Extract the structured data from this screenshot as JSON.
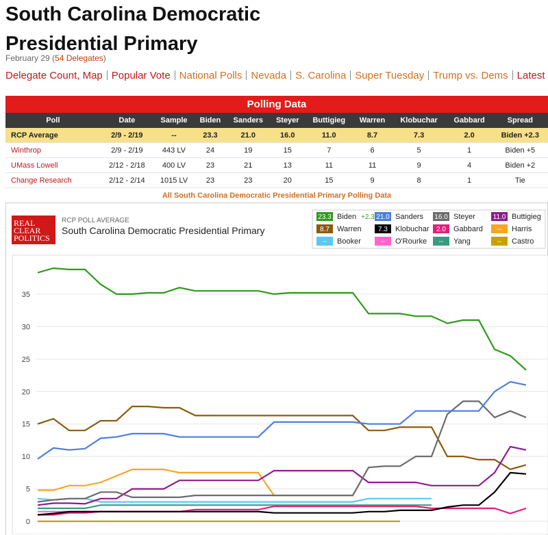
{
  "header": {
    "title": [
      "South Carolina Democratic",
      "Presidential Primary"
    ],
    "date": {
      "prefix": "February 29 (",
      "link": "54 Delegates",
      "suffix": ")"
    },
    "nav": [
      "Delegate Count, Map",
      "Popular Vote",
      "National Polls",
      "Nevada",
      "S. Carolina",
      "Super Tuesday",
      "Trump vs. Dems",
      "Latest Polls"
    ]
  },
  "table": {
    "title": "Polling Data",
    "columns": [
      "Poll",
      "Date",
      "Sample",
      "Biden",
      "Sanders",
      "Steyer",
      "Buttigieg",
      "Warren",
      "Klobuchar",
      "Gabbard",
      "Spread"
    ],
    "rows": [
      [
        "RCP Average",
        "2/9 - 2/19",
        "--",
        "23.3",
        "21.0",
        "16.0",
        "11.0",
        "8.7",
        "7.3",
        "2.0",
        "Biden +2.3"
      ],
      [
        "Winthrop",
        "2/9 - 2/19",
        "443 LV",
        "24",
        "19",
        "15",
        "7",
        "6",
        "5",
        "1",
        "Biden +5"
      ],
      [
        "UMass Lowell",
        "2/12 - 2/18",
        "400 LV",
        "23",
        "21",
        "13",
        "11",
        "11",
        "9",
        "4",
        "Biden +2"
      ],
      [
        "Change Research",
        "2/12 - 2/14",
        "1015 LV",
        "23",
        "23",
        "20",
        "15",
        "9",
        "8",
        "1",
        "Tie"
      ]
    ],
    "footer": "All South Carolina Democratic Presidential Primary Polling Data"
  },
  "chart_data": {
    "type": "line",
    "logo": [
      "REAL",
      "CLEAR",
      "POLITICS"
    ],
    "subtitle": "RCP POLL AVERAGE",
    "title": "South Carolina Democratic Presidential Primary",
    "categories": [
      null,
      null,
      null,
      null,
      null,
      null,
      null,
      null,
      null,
      null,
      null,
      null,
      null,
      null,
      null,
      null,
      null,
      null,
      null,
      null,
      null,
      null,
      null,
      null,
      null,
      null,
      null,
      null,
      null,
      null,
      null,
      null
    ],
    "ylim": [
      -2,
      41
    ],
    "yticks": [
      0,
      5,
      10,
      15,
      20,
      25,
      30,
      35
    ],
    "grid": true,
    "series": [
      {
        "name": "Biden",
        "color": "#2f9a1c",
        "latest": "23.3",
        "spread": "+2.3",
        "values": [
          38.3,
          39,
          38.8,
          38.8,
          36.5,
          35,
          35,
          35.2,
          35.2,
          36,
          35.5,
          35.5,
          35.5,
          35.5,
          35.5,
          35,
          35.2,
          35.2,
          35.2,
          35.2,
          35.2,
          32,
          32,
          32,
          31.6,
          31.6,
          30.5,
          31,
          31,
          26.5,
          25.5,
          23.3
        ]
      },
      {
        "name": "Sanders",
        "color": "#4b7fdc",
        "latest": "21.0",
        "values": [
          9.6,
          11.3,
          11,
          11.2,
          12.8,
          13,
          13.5,
          13.5,
          13.5,
          13,
          13,
          13,
          13,
          13,
          13,
          15.3,
          15.3,
          15.3,
          15.3,
          15.3,
          15.3,
          15,
          15,
          15,
          17,
          17,
          17,
          17,
          17,
          20,
          21.5,
          21
        ]
      },
      {
        "name": "Steyer",
        "color": "#6b6b6b",
        "latest": "16.0",
        "values": [
          3,
          3.3,
          3.5,
          3.5,
          4.5,
          4.5,
          3.7,
          3.7,
          3.7,
          3.7,
          4,
          4,
          4,
          4,
          4,
          4,
          4,
          4,
          4,
          4,
          4,
          8.3,
          8.5,
          8.5,
          10,
          10,
          16.5,
          18.5,
          18.5,
          16,
          17,
          16
        ]
      },
      {
        "name": "Buttigieg",
        "color": "#8e1a8e",
        "latest": "11.0",
        "values": [
          2.5,
          2.8,
          2.8,
          2.7,
          3.5,
          3.5,
          5,
          5,
          5,
          6.3,
          6.3,
          6.3,
          6.3,
          6.3,
          6.3,
          7.8,
          7.8,
          7.8,
          7.8,
          7.8,
          7.8,
          6,
          6,
          6,
          6,
          5.5,
          5.5,
          5.5,
          5.5,
          7.5,
          11.5,
          11
        ]
      },
      {
        "name": "Warren",
        "color": "#8b5a10",
        "latest": "8.7",
        "values": [
          15,
          15.8,
          14,
          14,
          15.5,
          15.5,
          17.7,
          17.7,
          17.5,
          17.5,
          16.3,
          16.3,
          16.3,
          16.3,
          16.3,
          16.3,
          16.3,
          16.3,
          16.3,
          16.3,
          16.3,
          14,
          14,
          14.5,
          14.5,
          14.5,
          10,
          10,
          9.5,
          9.5,
          8,
          8.7
        ]
      },
      {
        "name": "Klobuchar",
        "color": "#000000",
        "latest": "7.3",
        "values": [
          1,
          1.2,
          1.5,
          1.5,
          1.5,
          1.5,
          1.5,
          1.5,
          1.5,
          1.5,
          1.5,
          1.5,
          1.5,
          1.5,
          1.5,
          1.3,
          1.3,
          1.3,
          1.3,
          1.3,
          1.3,
          1.5,
          1.5,
          1.7,
          1.7,
          1.7,
          2.2,
          2.5,
          2.5,
          4.5,
          7.5,
          7.3
        ]
      },
      {
        "name": "Gabbard",
        "color": "#e0207a",
        "latest": "2.0",
        "values": [
          1,
          1,
          1.3,
          1.3,
          1.5,
          1.5,
          1.5,
          1.5,
          1.5,
          1.5,
          1.8,
          1.8,
          1.8,
          1.8,
          1.8,
          2.3,
          2.3,
          2.3,
          2.3,
          2.3,
          2.3,
          2.3,
          2.3,
          2.3,
          2.3,
          2,
          2,
          2,
          2,
          2,
          1.2,
          2
        ]
      },
      {
        "name": "Harris",
        "color": "#f5a623",
        "latest": "--",
        "values": [
          4.8,
          4.8,
          5.5,
          5.5,
          6,
          7,
          8,
          8,
          8,
          7.5,
          7.5,
          7.5,
          7.5,
          7.5,
          7.5,
          4,
          4,
          4,
          4,
          4,
          4,
          null,
          null,
          null,
          null,
          null,
          null,
          null,
          null,
          null,
          null,
          null
        ]
      },
      {
        "name": "Booker",
        "color": "#5cc8f0",
        "latest": "--",
        "values": [
          3.5,
          3.3,
          3.5,
          3.5,
          3,
          3,
          3,
          3,
          3,
          3,
          3,
          3,
          3,
          3,
          3,
          3,
          3,
          3,
          3,
          3,
          3,
          3.5,
          3.5,
          3.5,
          3.5,
          3.5,
          null,
          null,
          null,
          null,
          null,
          null
        ]
      },
      {
        "name": "O'Rourke",
        "color": "#ff66cc",
        "latest": "--",
        "values": [
          1.5,
          1.5,
          1.5,
          1.5,
          1.5,
          1.5,
          1.5,
          1.5,
          1.5,
          1.5,
          1.5,
          1.5,
          1.5,
          1.5,
          1.5,
          null,
          null,
          null,
          null,
          null,
          null,
          null,
          null,
          null,
          null,
          null,
          null,
          null,
          null,
          null,
          null,
          null
        ]
      },
      {
        "name": "Yang",
        "color": "#3a9a80",
        "latest": "--",
        "values": [
          2,
          2,
          2,
          2,
          2.5,
          2.5,
          2.5,
          2.5,
          2.5,
          2.5,
          2.5,
          2.5,
          2.5,
          2.5,
          2.5,
          2.5,
          2.5,
          2.5,
          2.5,
          2.5,
          2.5,
          2.5,
          2.5,
          2.5,
          2.5,
          2.5,
          null,
          null,
          null,
          null,
          null,
          null
        ]
      },
      {
        "name": "Castro",
        "color": "#c8a000",
        "latest": "--",
        "values": [
          0,
          0,
          0,
          0,
          0,
          0,
          0,
          0,
          0,
          0,
          0,
          0,
          0,
          0,
          0,
          0,
          0,
          0,
          0,
          0,
          0,
          0,
          0,
          0,
          null,
          null,
          null,
          null,
          null,
          null,
          null,
          null
        ]
      }
    ]
  }
}
